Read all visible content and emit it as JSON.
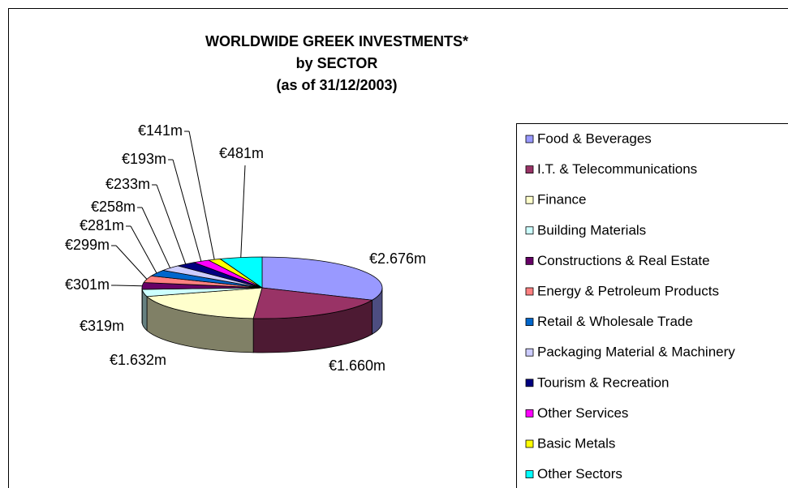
{
  "chart_data": {
    "type": "pie",
    "title": [
      "WORLDWIDE GREEK INVESTMENTS*",
      "by SECTOR",
      "(as of 31/12/2003)"
    ],
    "categories": [
      "Food & Beverages",
      "I.T. & Telecommunications",
      "Finance",
      "Building Materials",
      "Constructions & Real Estate",
      "Energy & Petroleum Products",
      "Retail & Wholesale Trade",
      "Packaging Material & Machinery",
      "Tourism & Recreation",
      "Other Services",
      "Basic Metals",
      "Other Sectors"
    ],
    "values": [
      2676,
      1660,
      1632,
      319,
      301,
      299,
      281,
      258,
      233,
      193,
      141,
      481
    ],
    "value_labels": [
      "€2.676m",
      "€1.660m",
      "€1.632m",
      "€319m",
      "€301m",
      "€299m",
      "€281m",
      "€258m",
      "€233m",
      "€193m",
      "€141m",
      "€481m"
    ],
    "colors": [
      "#9999ff",
      "#993366",
      "#ffffcc",
      "#ccffff",
      "#660066",
      "#ff8080",
      "#0066cc",
      "#ccccff",
      "#000080",
      "#ff00ff",
      "#ffff00",
      "#00ffff"
    ],
    "legend": "right"
  }
}
